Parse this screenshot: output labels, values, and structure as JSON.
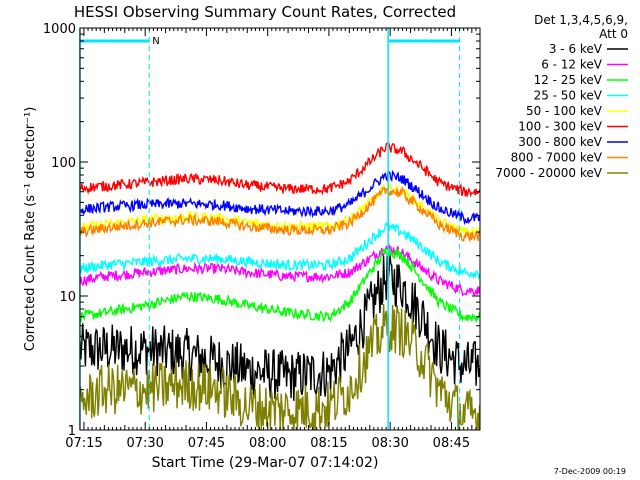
{
  "chart_data": {
    "type": "line",
    "title": "HESSI Observing Summary Count Rates, Corrected",
    "xlabel": "Start Time (29-Mar-07 07:14:02)",
    "ylabel": "Corrected Count Rate (s⁻¹ detector⁻¹)",
    "yscale": "log",
    "xlim": [
      "07:14:02",
      "08:52:00"
    ],
    "ylim": [
      1,
      1000
    ],
    "x_tick_labels": [
      "07:15",
      "07:30",
      "07:45",
      "08:00",
      "08:15",
      "08:30",
      "08:45"
    ],
    "x_ticks_min": [
      75,
      90,
      105,
      120,
      135,
      150,
      165
    ],
    "y_tick_labels": [
      "1",
      "10",
      "100",
      "1000"
    ],
    "y_ticks": [
      1,
      10,
      100,
      1000
    ],
    "legend_placement": "top-right, outside plot",
    "legend_header": [
      "Det 1,3,4,5,6,9,",
      "Att 0"
    ],
    "annotations": [
      {
        "text": "N",
        "x_min": 91
      }
    ],
    "series": [
      {
        "name": "3 - 6 keV",
        "color": "#000000",
        "x_min": [
          74,
          80,
          90,
          100,
          108,
          115,
          125,
          135,
          140,
          145,
          149,
          153,
          158,
          162,
          168
        ],
        "values": [
          4,
          4,
          4,
          3.7,
          3.2,
          2.8,
          2.5,
          2.7,
          4,
          8,
          14,
          12,
          7,
          4,
          3
        ]
      },
      {
        "name": "6 - 12 keV",
        "color": "#ff00ff",
        "x_min": [
          74,
          80,
          90,
          100,
          108,
          115,
          125,
          135,
          140,
          145,
          149,
          153,
          158,
          162,
          168
        ],
        "values": [
          13,
          14,
          15,
          16,
          16,
          15,
          14,
          14,
          15,
          19,
          23,
          21,
          16,
          13,
          11
        ]
      },
      {
        "name": "12 - 25 keV",
        "color": "#00ff00",
        "x_min": [
          74,
          80,
          90,
          100,
          108,
          115,
          125,
          135,
          140,
          145,
          149,
          153,
          158,
          162,
          168
        ],
        "values": [
          7,
          7.5,
          8.5,
          10,
          9.5,
          8.5,
          7.5,
          7,
          9,
          15,
          22,
          20,
          13,
          9,
          7
        ]
      },
      {
        "name": "25 - 50 keV",
        "color": "#00ffff",
        "x_min": [
          74,
          80,
          90,
          100,
          108,
          115,
          125,
          135,
          140,
          145,
          149,
          153,
          158,
          162,
          168
        ],
        "values": [
          16,
          17,
          18,
          19,
          19,
          18,
          17,
          17,
          19,
          26,
          33,
          30,
          23,
          18,
          15
        ]
      },
      {
        "name": "50 - 100 keV",
        "color": "#ffff00",
        "x_min": [
          74,
          80,
          90,
          100,
          108,
          115,
          125,
          135,
          140,
          145,
          149,
          153,
          158,
          162,
          168
        ],
        "values": [
          32,
          34,
          37,
          39,
          38,
          35,
          33,
          33,
          37,
          50,
          64,
          60,
          46,
          36,
          30
        ]
      },
      {
        "name": "100 - 300 keV",
        "color": "#ff0000",
        "x_min": [
          74,
          80,
          90,
          100,
          108,
          115,
          125,
          135,
          140,
          145,
          149,
          153,
          158,
          162,
          168
        ],
        "values": [
          64,
          66,
          70,
          75,
          73,
          67,
          63,
          63,
          72,
          100,
          130,
          120,
          90,
          70,
          60
        ]
      },
      {
        "name": "300 - 800 keV",
        "color": "#0000ff",
        "x_min": [
          74,
          80,
          90,
          100,
          108,
          115,
          125,
          135,
          140,
          145,
          149,
          153,
          158,
          162,
          168
        ],
        "values": [
          44,
          46,
          48,
          49,
          48,
          45,
          43,
          43,
          48,
          64,
          80,
          75,
          57,
          45,
          38
        ]
      },
      {
        "name": "800 - 7000 keV",
        "color": "#ff8000",
        "x_min": [
          74,
          80,
          90,
          100,
          108,
          115,
          125,
          135,
          140,
          145,
          149,
          153,
          158,
          162,
          168
        ],
        "values": [
          30,
          32,
          35,
          37,
          36,
          33,
          31,
          31,
          35,
          48,
          62,
          58,
          44,
          34,
          28
        ]
      },
      {
        "name": "7000 - 20000 keV",
        "color": "#808000",
        "x_min": [
          74,
          80,
          90,
          100,
          108,
          115,
          125,
          135,
          140,
          145,
          149,
          153,
          158,
          162,
          168
        ],
        "values": [
          1.6,
          2,
          2,
          2.2,
          2,
          1.5,
          1.4,
          1.5,
          2,
          4,
          6,
          5.5,
          3.5,
          2,
          1.3
        ]
      }
    ],
    "attenuator_marks_min": [
      74,
      91,
      149.5,
      167
    ]
  },
  "footer": {
    "date_stamp": "7-Dec-2009 00:19"
  }
}
